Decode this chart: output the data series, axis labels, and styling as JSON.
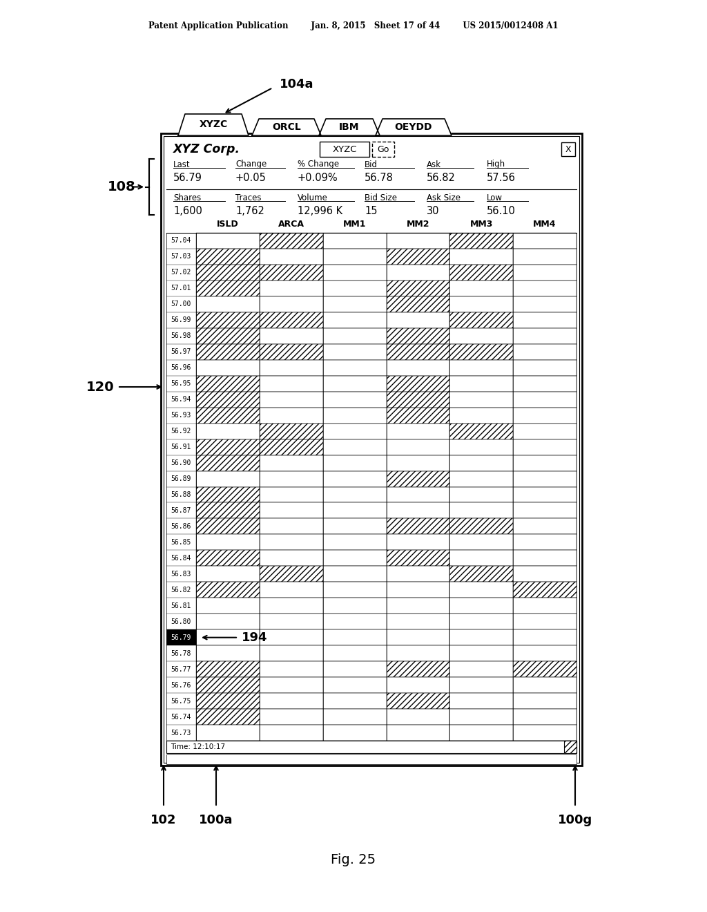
{
  "patent_header": "Patent Application Publication        Jan. 8, 2015   Sheet 17 of 44        US 2015/0012408 A1",
  "figure_label": "Fig. 25",
  "tab_labels": [
    "XYZC",
    "ORCL",
    "IBM",
    "OEYDD"
  ],
  "company_name": "XYZ Corp.",
  "ticker_box": "XYZC",
  "go_button": "Go",
  "close_button": "X",
  "header_label_104a": "104a",
  "label_108": "108",
  "label_120": "120",
  "label_194": "194",
  "label_102": "102",
  "label_100a": "100a",
  "label_100g": "100g",
  "info_labels_row1": [
    "Last",
    "Change",
    "% Change",
    "Bid",
    "Ask",
    "High"
  ],
  "info_values_row1": [
    "56.79",
    "+0.05",
    "+0.09%",
    "56.78",
    "56.82",
    "57.56"
  ],
  "info_labels_row2": [
    "Shares",
    "Traces",
    "Volume",
    "Bid Size",
    "Ask Size",
    "Low"
  ],
  "info_values_row2": [
    "1,600",
    "1,762",
    "12,996 K",
    "15",
    "30",
    "56.10"
  ],
  "grid_columns": [
    "ISLD",
    "ARCA",
    "MM1",
    "MM2",
    "MM3",
    "MM4"
  ],
  "price_rows": [
    "57.04",
    "57.03",
    "57.02",
    "57.01",
    "57.00",
    "56.99",
    "56.98",
    "56.97",
    "56.96",
    "56.95",
    "56.94",
    "56.93",
    "56.92",
    "56.91",
    "56.90",
    "56.89",
    "56.88",
    "56.87",
    "56.86",
    "56.85",
    "56.84",
    "56.83",
    "56.82",
    "56.81",
    "56.80",
    "56.79",
    "56.78",
    "56.77",
    "56.76",
    "56.75",
    "56.74",
    "56.73"
  ],
  "highlighted_price": "56.79",
  "time_label": "Time: 12:10:17",
  "hatch_pattern": [
    [
      false,
      true,
      false,
      false,
      true,
      false
    ],
    [
      true,
      false,
      false,
      true,
      false,
      false
    ],
    [
      true,
      true,
      false,
      false,
      true,
      false
    ],
    [
      true,
      false,
      false,
      true,
      false,
      false
    ],
    [
      false,
      false,
      false,
      true,
      false,
      false
    ],
    [
      true,
      true,
      false,
      false,
      true,
      false
    ],
    [
      true,
      false,
      false,
      true,
      false,
      false
    ],
    [
      true,
      true,
      false,
      true,
      true,
      false
    ],
    [
      false,
      false,
      false,
      false,
      false,
      false
    ],
    [
      true,
      false,
      false,
      true,
      false,
      false
    ],
    [
      true,
      false,
      false,
      true,
      false,
      false
    ],
    [
      true,
      false,
      false,
      true,
      false,
      false
    ],
    [
      false,
      true,
      false,
      false,
      true,
      false
    ],
    [
      true,
      true,
      false,
      false,
      false,
      false
    ],
    [
      true,
      false,
      false,
      false,
      false,
      false
    ],
    [
      false,
      false,
      false,
      true,
      false,
      false
    ],
    [
      true,
      false,
      false,
      false,
      false,
      false
    ],
    [
      true,
      false,
      false,
      false,
      false,
      false
    ],
    [
      true,
      false,
      false,
      true,
      true,
      false
    ],
    [
      false,
      false,
      false,
      false,
      false,
      false
    ],
    [
      true,
      false,
      false,
      true,
      false,
      false
    ],
    [
      false,
      true,
      false,
      false,
      true,
      false
    ],
    [
      true,
      false,
      false,
      false,
      false,
      true
    ],
    [
      false,
      false,
      false,
      false,
      false,
      false
    ],
    [
      false,
      false,
      false,
      false,
      false,
      false
    ],
    [
      false,
      false,
      false,
      false,
      false,
      false
    ],
    [
      false,
      false,
      false,
      false,
      false,
      false
    ],
    [
      true,
      false,
      false,
      true,
      false,
      true
    ],
    [
      true,
      false,
      false,
      false,
      false,
      false
    ],
    [
      true,
      false,
      false,
      true,
      false,
      false
    ],
    [
      true,
      false,
      false,
      false,
      false,
      false
    ],
    [
      false,
      false,
      false,
      false,
      false,
      false
    ]
  ],
  "bg_color": "#ffffff"
}
